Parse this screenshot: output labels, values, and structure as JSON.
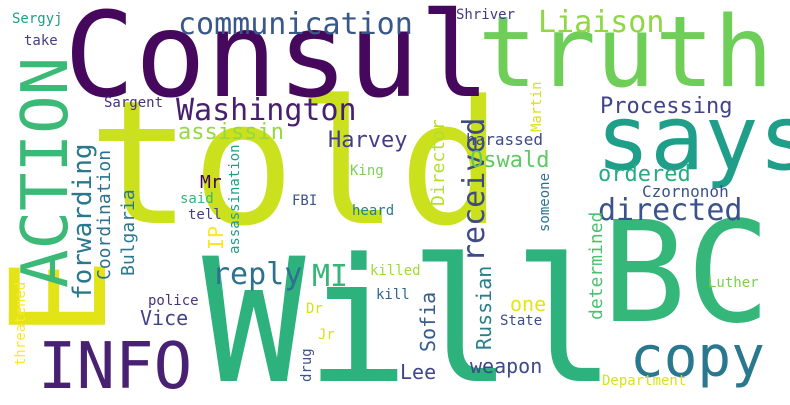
{
  "words": [
    {
      "text": "told",
      "color": "#cbe11e",
      "size": "big"
    },
    {
      "text": "Consul",
      "color": "#46085c",
      "size": "big"
    },
    {
      "text": "Will",
      "color": "#2db27d",
      "size": "big"
    },
    {
      "text": "BC",
      "color": "#35b779",
      "size": "big"
    },
    {
      "text": "E",
      "color": "#e2e418",
      "size": "big"
    },
    {
      "text": "truth",
      "color": "#6ece58",
      "size": "big"
    },
    {
      "text": "says",
      "color": "#1f9e89",
      "size": "big"
    },
    {
      "text": "ACTION",
      "color": "#3aba76",
      "size": "big"
    },
    {
      "text": "INFO",
      "color": "#482173",
      "size": "big"
    },
    {
      "text": "copy",
      "color": "#2a788e",
      "size": "big"
    },
    {
      "text": "communication",
      "color": "#38588c",
      "size": "medium"
    },
    {
      "text": "Liaison",
      "color": "#8fd744",
      "size": "medium"
    },
    {
      "text": "Washington",
      "color": "#481f70",
      "size": "medium"
    },
    {
      "text": "received",
      "color": "#3e4989",
      "size": "medium"
    },
    {
      "text": "directed",
      "color": "#3b528b",
      "size": "medium"
    },
    {
      "text": "reply",
      "color": "#2c728e",
      "size": "medium"
    },
    {
      "text": "MI",
      "color": "#35b779",
      "size": "medium"
    },
    {
      "text": "forwarding",
      "color": "#2a788e",
      "size": "medium"
    },
    {
      "text": "Sergyj",
      "color": "#1f9e89",
      "size": "small"
    },
    {
      "text": "take",
      "color": "#433e85",
      "size": "small"
    },
    {
      "text": "Shriver",
      "color": "#443a83",
      "size": "small"
    },
    {
      "text": "Martin",
      "color": "#d8e219",
      "size": "small"
    },
    {
      "text": "Sargent",
      "color": "#46337e",
      "size": "small"
    },
    {
      "text": "Processing",
      "color": "#414487",
      "size": "small"
    },
    {
      "text": "assissin",
      "color": "#95d840",
      "size": "small"
    },
    {
      "text": "Harvey",
      "color": "#433e85",
      "size": "small"
    },
    {
      "text": "harassed",
      "color": "#3e4989",
      "size": "small"
    },
    {
      "text": "Oswald",
      "color": "#5ec962",
      "size": "small"
    },
    {
      "text": "ordered",
      "color": "#25ac82",
      "size": "small"
    },
    {
      "text": "Czornonoh",
      "color": "#3b528b",
      "size": "small"
    },
    {
      "text": "Coordination",
      "color": "#2c728e",
      "size": "small"
    },
    {
      "text": "Bulgaria",
      "color": "#2a788e",
      "size": "small"
    },
    {
      "text": "Mr",
      "color": "#440154",
      "size": "small"
    },
    {
      "text": "said",
      "color": "#35b779",
      "size": "small"
    },
    {
      "text": "tell",
      "color": "#433e85",
      "size": "small"
    },
    {
      "text": "FBI",
      "color": "#3b528b",
      "size": "small"
    },
    {
      "text": "assassination",
      "color": "#1f9e89",
      "size": "small"
    },
    {
      "text": "King",
      "color": "#7ad151",
      "size": "small"
    },
    {
      "text": "heard",
      "color": "#287d8e",
      "size": "small"
    },
    {
      "text": "Director",
      "color": "#b5de2b",
      "size": "small"
    },
    {
      "text": "someone",
      "color": "#2c728e",
      "size": "small"
    },
    {
      "text": "IP",
      "color": "#fde725",
      "size": "small"
    },
    {
      "text": "police",
      "color": "#46337e",
      "size": "small"
    },
    {
      "text": "killed",
      "color": "#a0da39",
      "size": "small"
    },
    {
      "text": "kill",
      "color": "#32648e",
      "size": "small"
    },
    {
      "text": "Luther",
      "color": "#7ad151",
      "size": "small"
    },
    {
      "text": "threatened",
      "color": "#fde725",
      "size": "small"
    },
    {
      "text": "Vice",
      "color": "#414487",
      "size": "small"
    },
    {
      "text": "Sofia",
      "color": "#365d8d",
      "size": "small"
    },
    {
      "text": "Russian",
      "color": "#277f8e",
      "size": "small"
    },
    {
      "text": "one",
      "color": "#e5e419",
      "size": "small"
    },
    {
      "text": "State",
      "color": "#3e4a89",
      "size": "small"
    },
    {
      "text": "determined",
      "color": "#4ac16d",
      "size": "small"
    },
    {
      "text": "Dr",
      "color": "#d2e21b",
      "size": "small"
    },
    {
      "text": "Jr",
      "color": "#d8e219",
      "size": "small"
    },
    {
      "text": "drug",
      "color": "#3b528b",
      "size": "small"
    },
    {
      "text": "Lee",
      "color": "#404688",
      "size": "small"
    },
    {
      "text": "weapon",
      "color": "#3e4989",
      "size": "small"
    },
    {
      "text": "Department",
      "color": "#d8e219",
      "size": "small"
    }
  ]
}
